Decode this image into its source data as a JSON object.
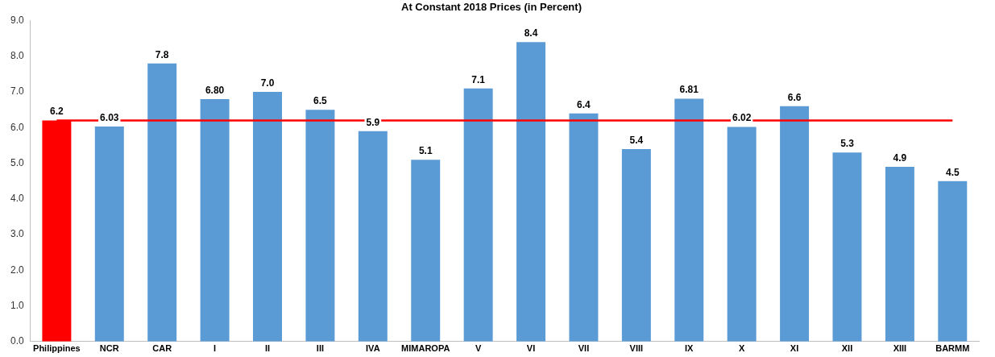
{
  "chart_data": {
    "type": "bar",
    "title": "At Constant 2018 Prices (in Percent)",
    "categories": [
      "Philippines",
      "NCR",
      "CAR",
      "I",
      "II",
      "III",
      "IVA",
      "MIMAROPA",
      "V",
      "VI",
      "VII",
      "VIII",
      "IX",
      "X",
      "XI",
      "XII",
      "XIII",
      "BARMM"
    ],
    "values": [
      6.2,
      6.03,
      7.8,
      6.8,
      7.0,
      6.5,
      5.9,
      5.1,
      7.1,
      8.4,
      6.4,
      5.4,
      6.81,
      6.02,
      6.6,
      5.3,
      4.9,
      4.5
    ],
    "value_labels": [
      "6.2",
      "6.03",
      "7.8",
      "6.80",
      "7.0",
      "6.5",
      "5.9",
      "5.1",
      "7.1",
      "8.4",
      "6.4",
      "5.4",
      "6.81",
      "6.02",
      "6.6",
      "5.3",
      "4.9",
      "4.5"
    ],
    "colors": [
      "#ff0000",
      "#5b9bd5",
      "#5b9bd5",
      "#5b9bd5",
      "#5b9bd5",
      "#5b9bd5",
      "#5b9bd5",
      "#5b9bd5",
      "#5b9bd5",
      "#5b9bd5",
      "#5b9bd5",
      "#5b9bd5",
      "#5b9bd5",
      "#5b9bd5",
      "#5b9bd5",
      "#5b9bd5",
      "#5b9bd5",
      "#5b9bd5"
    ],
    "ylim": [
      0,
      9
    ],
    "yticks": [
      {
        "value": 0,
        "label": "0.0"
      },
      {
        "value": 1,
        "label": "1.0"
      },
      {
        "value": 2,
        "label": "2.0"
      },
      {
        "value": 3,
        "label": "3.0"
      },
      {
        "value": 4,
        "label": "4.0"
      },
      {
        "value": 5,
        "label": "5.0"
      },
      {
        "value": 6,
        "label": "6.0"
      },
      {
        "value": 7,
        "label": "7.0"
      },
      {
        "value": 8,
        "label": "8.0"
      },
      {
        "value": 9,
        "label": "9.0"
      }
    ],
    "ref_lines": [
      {
        "axis": "y",
        "value": 6.2,
        "color": "#ff0000"
      }
    ],
    "grid": false,
    "legend": false
  }
}
